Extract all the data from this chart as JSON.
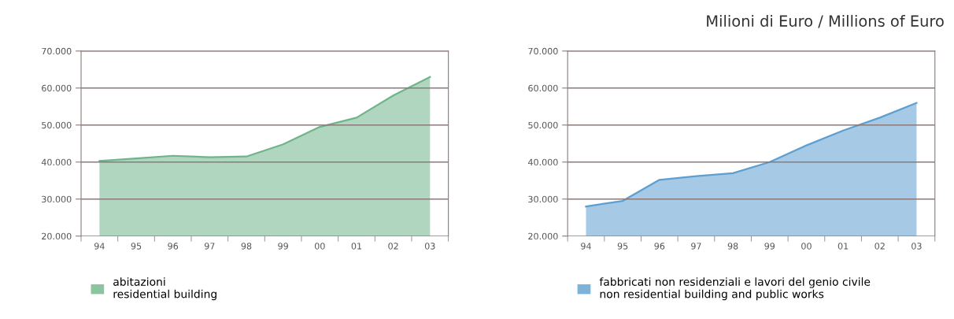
{
  "chart_data": [
    {
      "type": "area",
      "categories": [
        "94",
        "95",
        "96",
        "97",
        "98",
        "99",
        "00",
        "01",
        "02",
        "03"
      ],
      "series": [
        {
          "name": "abitazioni\nresidential building",
          "color": "#6fb48a",
          "values": [
            40300,
            41000,
            41700,
            41300,
            41500,
            44800,
            49500,
            52000,
            58000,
            63000
          ]
        }
      ],
      "ylim": [
        20000,
        70000
      ],
      "yticks": [
        {
          "value": 20000,
          "label": "20.000"
        },
        {
          "value": 30000,
          "label": "30.000"
        },
        {
          "value": 40000,
          "label": "40.000"
        },
        {
          "value": 50000,
          "label": "50.000"
        },
        {
          "value": 60000,
          "label": "60.000"
        },
        {
          "value": 70000,
          "label": "70.000"
        }
      ],
      "grid": "y",
      "legend": "bottom left"
    },
    {
      "type": "area",
      "title": "Milioni di Euro / Millions of Euro",
      "categories": [
        "94",
        "95",
        "96",
        "97",
        "98",
        "99",
        "00",
        "01",
        "02",
        "03"
      ],
      "series": [
        {
          "name": "fabbricati non residenziali e lavori del genio civile\nnon residential building and public works",
          "color": "#5d9fd0",
          "values": [
            28000,
            29500,
            35200,
            36200,
            37000,
            40000,
            44500,
            48500,
            52000,
            56000
          ]
        }
      ],
      "ylim": [
        20000,
        70000
      ],
      "yticks": [
        {
          "value": 20000,
          "label": "20.000"
        },
        {
          "value": 30000,
          "label": "30.000"
        },
        {
          "value": 40000,
          "label": "40.000"
        },
        {
          "value": 50000,
          "label": "50.000"
        },
        {
          "value": 60000,
          "label": "60.000"
        },
        {
          "value": 70000,
          "label": "70.000"
        }
      ],
      "grid": "y",
      "legend": "bottom left"
    }
  ]
}
